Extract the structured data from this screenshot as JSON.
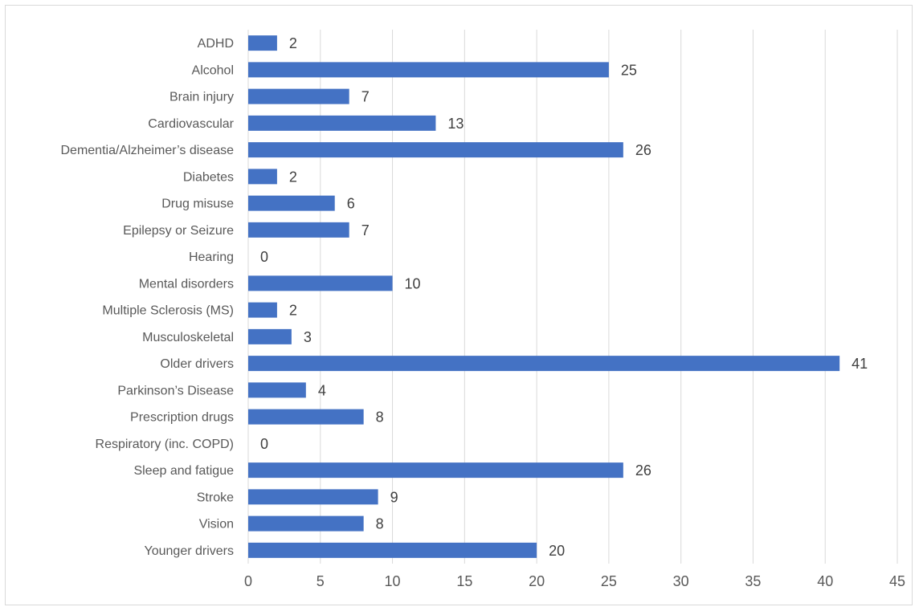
{
  "chart_data": {
    "type": "bar",
    "orientation": "horizontal",
    "title": "",
    "xlabel": "",
    "ylabel": "",
    "categories": [
      "ADHD",
      "Alcohol",
      "Brain injury",
      "Cardiovascular",
      "Dementia/Alzheimer’s disease",
      "Diabetes",
      "Drug misuse",
      "Epilepsy or Seizure",
      "Hearing",
      "Mental disorders",
      "Multiple Sclerosis (MS)",
      "Musculoskeletal",
      "Older drivers",
      "Parkinson’s Disease",
      "Prescription drugs",
      "Respiratory (inc. COPD)",
      "Sleep and fatigue",
      "Stroke",
      "Vision",
      "Younger drivers"
    ],
    "values": [
      2,
      25,
      7,
      13,
      26,
      2,
      6,
      7,
      0,
      10,
      2,
      3,
      41,
      4,
      8,
      0,
      26,
      9,
      8,
      20
    ],
    "xlim": [
      0,
      45
    ],
    "xticks": [
      "0",
      "5",
      "10",
      "15",
      "20",
      "25",
      "30",
      "35",
      "40",
      "45"
    ],
    "grid": "vertical",
    "legend": "none",
    "bar_color": "#4472c4"
  }
}
